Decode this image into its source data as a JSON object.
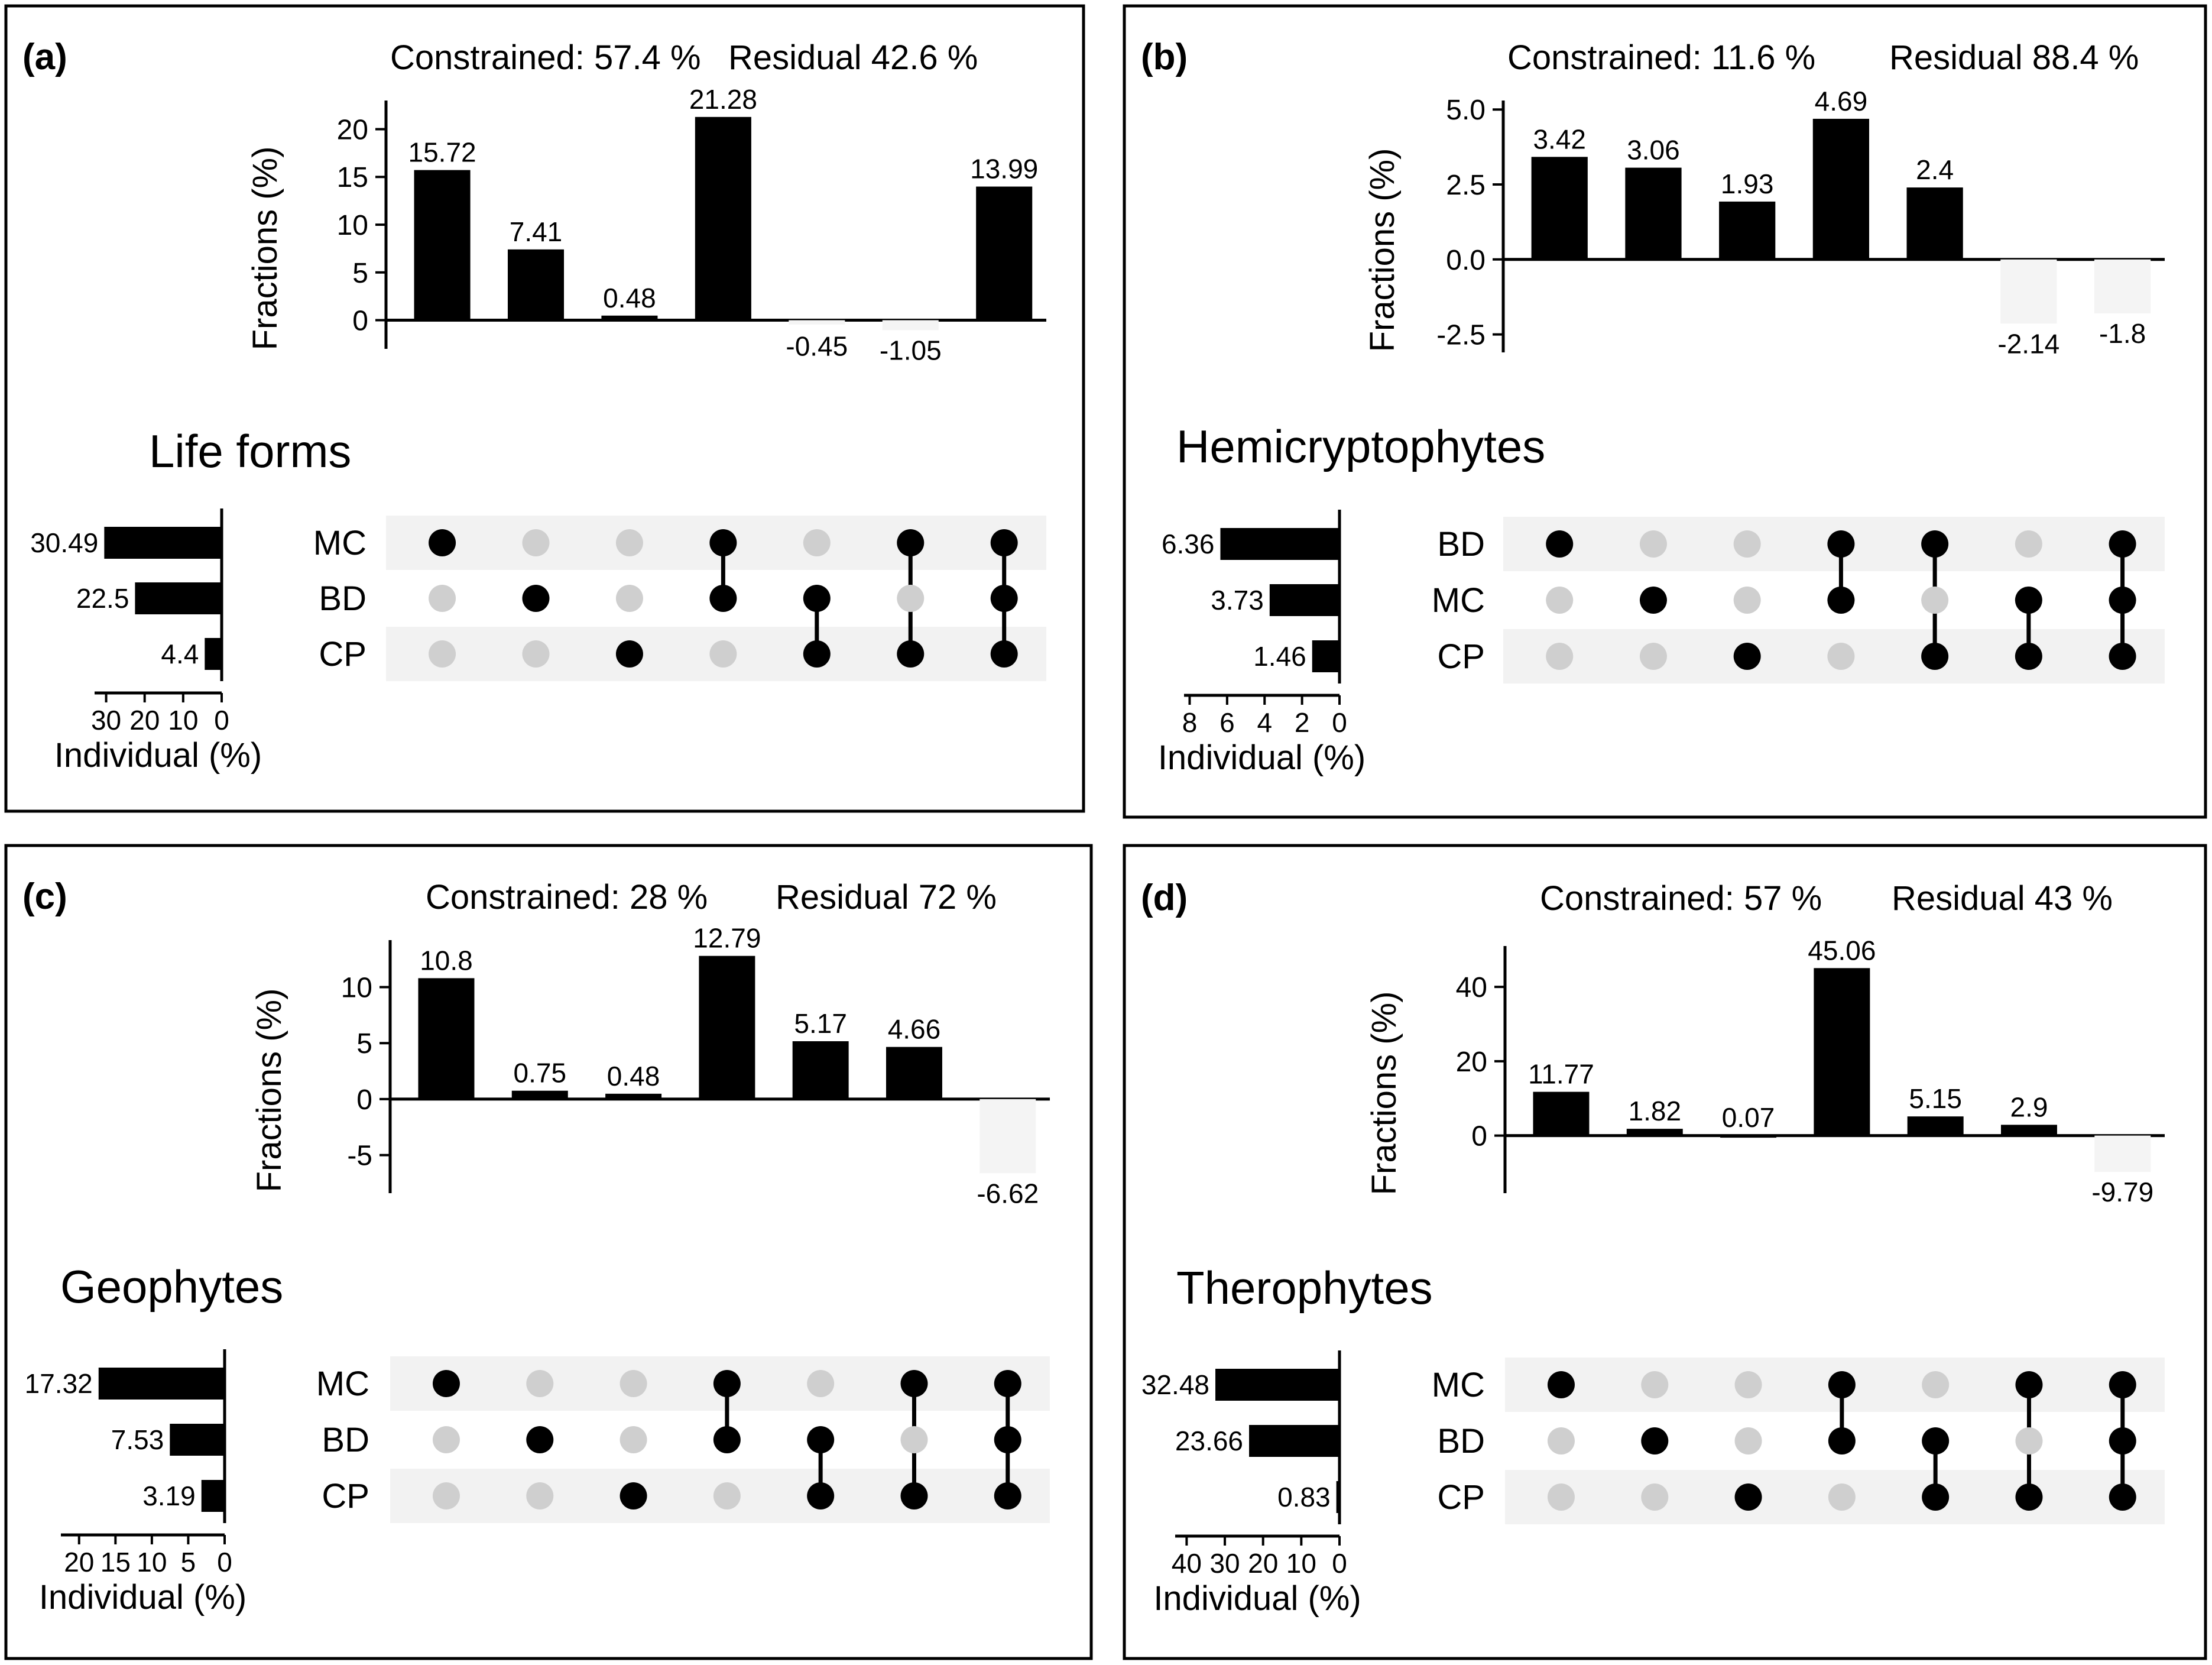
{
  "chart_data": [
    {
      "panel": "(a)",
      "type": "bar",
      "chart_kind": "upset",
      "title": "Life forms",
      "constrained_label": "Constrained: 57.4 %",
      "residual_label": "Residual 42.6 %",
      "ylabel": "Fractions (%)",
      "ylim": [
        -3,
        23
      ],
      "yticks": [
        0,
        5,
        10,
        15,
        20
      ],
      "ytick_labels": [
        "0",
        "5",
        "10",
        "15",
        "20"
      ],
      "values": [
        15.72,
        7.41,
        0.48,
        21.28,
        -0.45,
        -1.05,
        13.99
      ],
      "value_labels": [
        "15.72",
        "7.41",
        "0.48",
        "21.28",
        "-0.45",
        "-1.05",
        "13.99"
      ],
      "sets": [
        "MC",
        "BD",
        "CP"
      ],
      "set_sizes": [
        30.49,
        22.5,
        4.4
      ],
      "set_size_labels": [
        "30.49",
        "22.5",
        "4.4"
      ],
      "xlabel": "Individual (%)",
      "size_max": 33,
      "size_ticks": [
        30,
        20,
        10,
        0
      ],
      "size_tick_labels": [
        "30",
        "20",
        "10",
        "0"
      ],
      "membership": [
        [
          1,
          0,
          0
        ],
        [
          0,
          1,
          0
        ],
        [
          0,
          0,
          1
        ],
        [
          1,
          1,
          0
        ],
        [
          0,
          1,
          1
        ],
        [
          1,
          0,
          1
        ],
        [
          1,
          1,
          1
        ]
      ]
    },
    {
      "panel": "(b)",
      "type": "bar",
      "chart_kind": "upset",
      "title": "Hemicryptophytes",
      "constrained_label": "Constrained: 11.6 %",
      "residual_label": "Residual 88.4 %",
      "ylabel": "Fractions (%)",
      "ylim": [
        -3.1,
        5.3
      ],
      "yticks": [
        -2.5,
        0,
        2.5,
        5
      ],
      "ytick_labels": [
        "-2.5",
        "0.0",
        "2.5",
        "5.0"
      ],
      "values": [
        3.42,
        3.06,
        1.93,
        4.69,
        2.4,
        -2.14,
        -1.8
      ],
      "value_labels": [
        "3.42",
        "3.06",
        "1.93",
        "4.69",
        "2.4",
        "-2.14",
        "-1.8"
      ],
      "sets": [
        "BD",
        "MC",
        "CP"
      ],
      "set_sizes": [
        6.36,
        3.73,
        1.46
      ],
      "set_size_labels": [
        "6.36",
        "3.73",
        "1.46"
      ],
      "xlabel": "Individual (%)",
      "size_max": 8.3,
      "size_ticks": [
        8,
        6,
        4,
        2,
        0
      ],
      "size_tick_labels": [
        "8",
        "6",
        "4",
        "2",
        "0"
      ],
      "membership": [
        [
          1,
          0,
          0
        ],
        [
          0,
          1,
          0
        ],
        [
          0,
          0,
          1
        ],
        [
          1,
          1,
          0
        ],
        [
          1,
          0,
          1
        ],
        [
          0,
          1,
          1
        ],
        [
          1,
          1,
          1
        ]
      ]
    },
    {
      "panel": "(c)",
      "type": "bar",
      "chart_kind": "upset",
      "title": "Geophytes",
      "constrained_label": "Constrained: 28 %",
      "residual_label": "Residual 72 %",
      "ylabel": "Fractions (%)",
      "ylim": [
        -8.4,
        14.2
      ],
      "yticks": [
        -5,
        0,
        5,
        10
      ],
      "ytick_labels": [
        "-5",
        "0",
        "5",
        "10"
      ],
      "values": [
        10.8,
        0.75,
        0.48,
        12.79,
        5.17,
        4.66,
        -6.62
      ],
      "value_labels": [
        "10.8",
        "0.75",
        "0.48",
        "12.79",
        "5.17",
        "4.66",
        "-6.62"
      ],
      "sets": [
        "MC",
        "BD",
        "CP"
      ],
      "set_sizes": [
        17.32,
        7.53,
        3.19
      ],
      "set_size_labels": [
        "17.32",
        "7.53",
        "3.19"
      ],
      "xlabel": "Individual (%)",
      "size_max": 22.5,
      "size_ticks": [
        20,
        15,
        10,
        5,
        0
      ],
      "size_tick_labels": [
        "20",
        "15",
        "10",
        "5",
        "0"
      ],
      "membership": [
        [
          1,
          0,
          0
        ],
        [
          0,
          1,
          0
        ],
        [
          0,
          0,
          1
        ],
        [
          1,
          1,
          0
        ],
        [
          0,
          1,
          1
        ],
        [
          1,
          0,
          1
        ],
        [
          1,
          1,
          1
        ]
      ]
    },
    {
      "panel": "(d)",
      "type": "bar",
      "chart_kind": "upset",
      "title": "Therophytes",
      "constrained_label": "Constrained: 57 %",
      "residual_label": "Residual 43 %",
      "ylabel": "Fractions (%)",
      "ylim": [
        -15.5,
        51
      ],
      "yticks": [
        0,
        20,
        40
      ],
      "ytick_labels": [
        "0",
        "20",
        "40"
      ],
      "values": [
        11.77,
        1.82,
        0.07,
        45.06,
        5.15,
        2.9,
        -9.79
      ],
      "value_labels": [
        "11.77",
        "1.82",
        "0.07",
        "45.06",
        "5.15",
        "2.9",
        "-9.79"
      ],
      "sets": [
        "MC",
        "BD",
        "CP"
      ],
      "set_sizes": [
        32.48,
        23.66,
        0.83
      ],
      "set_size_labels": [
        "32.48",
        "23.66",
        "0.83"
      ],
      "xlabel": "Individual (%)",
      "size_max": 43,
      "size_ticks": [
        40,
        30,
        20,
        10,
        0
      ],
      "size_tick_labels": [
        "40",
        "30",
        "20",
        "10",
        "0"
      ],
      "membership": [
        [
          1,
          0,
          0
        ],
        [
          0,
          1,
          0
        ],
        [
          0,
          0,
          1
        ],
        [
          1,
          1,
          0
        ],
        [
          0,
          1,
          1
        ],
        [
          1,
          0,
          1
        ],
        [
          1,
          1,
          1
        ]
      ]
    }
  ],
  "colors": {
    "bar": "#000000",
    "negative_bar": "#f4f4f4",
    "dot_on": "#000000",
    "dot_off": "#cfcfcf",
    "stripe": "#f2f2f2",
    "frame": "#000000"
  }
}
